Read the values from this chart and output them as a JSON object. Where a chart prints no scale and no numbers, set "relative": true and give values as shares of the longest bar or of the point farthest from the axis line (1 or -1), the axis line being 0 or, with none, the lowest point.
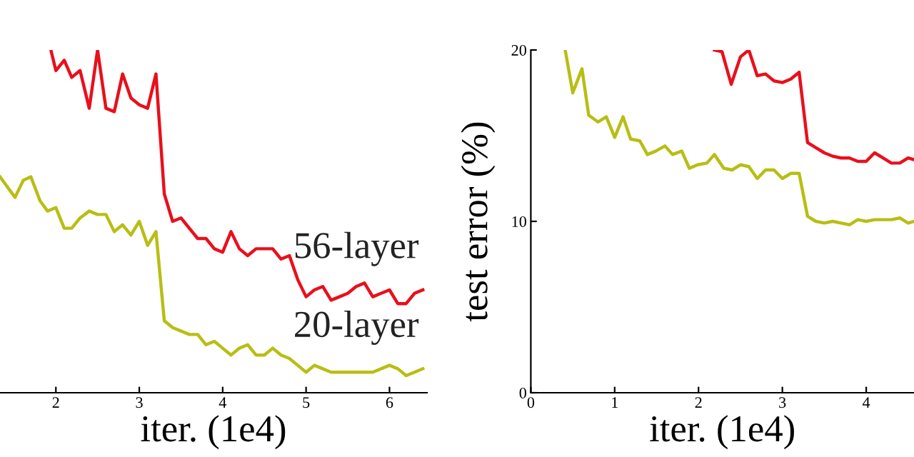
{
  "chart_data": [
    {
      "type": "line",
      "relative": true,
      "xlabel": "iter. (1e4)",
      "xlim": [
        1.33,
        6.45
      ],
      "xticks": [
        2,
        3,
        4,
        5,
        6
      ],
      "tick_labels": "x",
      "grid": false,
      "series": [
        {
          "name": "56-layer",
          "color": "#e8101c",
          "x": [
            1.94,
            2.0,
            2.1,
            2.19,
            2.29,
            2.4,
            2.5,
            2.6,
            2.7,
            2.8,
            2.9,
            3.0,
            3.1,
            3.2,
            3.3,
            3.4,
            3.5,
            3.6,
            3.7,
            3.8,
            3.9,
            4.0,
            4.1,
            4.2,
            4.3,
            4.4,
            4.5,
            4.6,
            4.7,
            4.8,
            4.9,
            5.0,
            5.1,
            5.2,
            5.3,
            5.4,
            5.5,
            5.6,
            5.7,
            5.8,
            5.9,
            6.0,
            6.1,
            6.2,
            6.3,
            6.4
          ],
          "values": [
            1.0,
            0.94,
            0.97,
            0.92,
            0.94,
            0.83,
            1.0,
            0.83,
            0.82,
            0.93,
            0.86,
            0.84,
            0.83,
            0.93,
            0.58,
            0.5,
            0.51,
            0.48,
            0.45,
            0.45,
            0.42,
            0.41,
            0.47,
            0.42,
            0.4,
            0.42,
            0.42,
            0.42,
            0.39,
            0.4,
            0.33,
            0.28,
            0.3,
            0.31,
            0.27,
            0.28,
            0.29,
            0.31,
            0.32,
            0.28,
            0.29,
            0.3,
            0.26,
            0.26,
            0.29,
            0.3
          ]
        },
        {
          "name": "20-layer",
          "color": "#b8be14",
          "x": [
            1.33,
            1.51,
            1.61,
            1.7,
            1.81,
            1.9,
            2.0,
            2.1,
            2.19,
            2.29,
            2.4,
            2.5,
            2.6,
            2.7,
            2.8,
            2.9,
            3.0,
            3.1,
            3.2,
            3.3,
            3.4,
            3.5,
            3.6,
            3.7,
            3.8,
            3.9,
            4.0,
            4.1,
            4.2,
            4.3,
            4.4,
            4.5,
            4.6,
            4.7,
            4.8,
            4.9,
            5.0,
            5.1,
            5.2,
            5.3,
            5.4,
            5.5,
            5.6,
            5.7,
            5.8,
            5.9,
            6.0,
            6.1,
            6.2,
            6.3,
            6.4
          ],
          "values": [
            0.63,
            0.57,
            0.62,
            0.63,
            0.56,
            0.53,
            0.54,
            0.48,
            0.48,
            0.51,
            0.53,
            0.52,
            0.52,
            0.47,
            0.49,
            0.46,
            0.5,
            0.43,
            0.47,
            0.21,
            0.19,
            0.18,
            0.17,
            0.17,
            0.14,
            0.15,
            0.13,
            0.11,
            0.13,
            0.14,
            0.11,
            0.11,
            0.13,
            0.11,
            0.1,
            0.08,
            0.06,
            0.08,
            0.07,
            0.06,
            0.06,
            0.06,
            0.06,
            0.06,
            0.06,
            0.07,
            0.08,
            0.07,
            0.05,
            0.06,
            0.07
          ]
        }
      ]
    },
    {
      "type": "line",
      "xlabel": "iter. (1e4)",
      "ylabel": "test error (%)",
      "xlim": [
        0,
        4.57
      ],
      "xticks": [
        0,
        1,
        2,
        3,
        4
      ],
      "ylim": [
        0,
        20
      ],
      "yticks": [
        0,
        10,
        20
      ],
      "grid": false,
      "series": [
        {
          "color": "#b8be14",
          "x": [
            0.41,
            0.5,
            0.61,
            0.69,
            0.8,
            0.9,
            1.0,
            1.1,
            1.19,
            1.3,
            1.39,
            1.49,
            1.6,
            1.69,
            1.8,
            1.89,
            1.99,
            2.1,
            2.19,
            2.3,
            2.4,
            2.5,
            2.6,
            2.7,
            2.8,
            2.9,
            3.0,
            3.1,
            3.2,
            3.3,
            3.4,
            3.5,
            3.6,
            3.7,
            3.8,
            3.9,
            4.0,
            4.1,
            4.2,
            4.3,
            4.4,
            4.5,
            4.57
          ],
          "values": [
            20,
            17.5,
            18.9,
            16.2,
            15.8,
            16.1,
            14.9,
            16.1,
            14.8,
            14.7,
            13.9,
            14.1,
            14.4,
            13.9,
            14.1,
            13.1,
            13.3,
            13.4,
            13.9,
            13.1,
            13.0,
            13.3,
            13.2,
            12.5,
            13.0,
            13.0,
            12.5,
            12.8,
            12.8,
            10.3,
            10.0,
            9.9,
            10.0,
            9.9,
            9.8,
            10.1,
            10.0,
            10.1,
            10.1,
            10.1,
            10.2,
            9.9,
            10.0
          ]
        },
        {
          "color": "#e8101c",
          "x": [
            2.19,
            2.28,
            2.39,
            2.5,
            2.6,
            2.7,
            2.8,
            2.9,
            3.0,
            3.1,
            3.2,
            3.3,
            3.4,
            3.5,
            3.6,
            3.7,
            3.8,
            3.9,
            4.0,
            4.1,
            4.2,
            4.3,
            4.4,
            4.5,
            4.57
          ],
          "values": [
            20,
            19.9,
            18.0,
            19.6,
            20,
            18.5,
            18.6,
            18.2,
            18.1,
            18.3,
            18.7,
            14.6,
            14.3,
            14.0,
            13.8,
            13.7,
            13.7,
            13.5,
            13.5,
            14.0,
            13.7,
            13.4,
            13.4,
            13.7,
            13.6
          ]
        }
      ]
    }
  ]
}
